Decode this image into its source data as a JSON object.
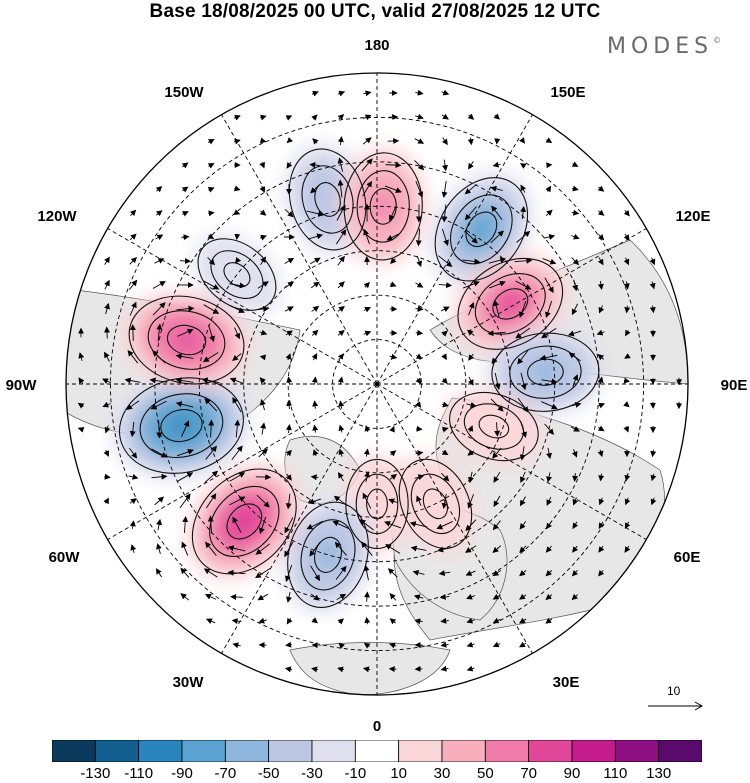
{
  "title": "Base 18/08/2025 00 UTC, valid 27/08/2025 12 UTC",
  "brand": "MODES",
  "brand_mark": "©",
  "longitude_labels": {
    "lon180": "180",
    "lon150E": "150E",
    "lon120E": "120E",
    "lon90E": "90E",
    "lon60E": "60E",
    "lon30E": "30E",
    "lon0": "0",
    "lon30W": "30W",
    "lon60W": "60W",
    "lon90W": "90W",
    "lon120W": "120W",
    "lon150W": "150W"
  },
  "reference_vector": {
    "label": "10"
  },
  "colorbar": {
    "ticks": [
      "-130",
      "-110",
      "-90",
      "-70",
      "-50",
      "-30",
      "-10",
      "10",
      "30",
      "50",
      "70",
      "90",
      "110",
      "130"
    ],
    "colors": [
      "#0b3a5c",
      "#125f8f",
      "#2a84bd",
      "#5aa2cf",
      "#8eb6dc",
      "#bcc7e4",
      "#e0e0ef",
      "#ffffff",
      "#fad7d9",
      "#f7aebd",
      "#f07aa8",
      "#e2479a",
      "#c41c8a",
      "#8e0f82",
      "#5a0a6c"
    ]
  },
  "anomaly_centers": [
    {
      "lon": -165,
      "colat_deg": 43,
      "value": -60
    },
    {
      "lon": 178,
      "colat_deg": 40,
      "value": 70
    },
    {
      "lon": 146,
      "colat_deg": 42,
      "value": -80
    },
    {
      "lon": 121,
      "colat_deg": 35,
      "value": 80
    },
    {
      "lon": 94,
      "colat_deg": 38,
      "value": -70
    },
    {
      "lon": 70,
      "colat_deg": 28,
      "value": 35
    },
    {
      "lon": 26,
      "colat_deg": 30,
      "value": 40
    },
    {
      "lon": 0,
      "colat_deg": 27,
      "value": 30
    },
    {
      "lon": -16,
      "colat_deg": 40,
      "value": -70
    },
    {
      "lon": -44,
      "colat_deg": 43,
      "value": 95
    },
    {
      "lon": -78,
      "colat_deg": 45,
      "value": -110
    },
    {
      "lon": -103,
      "colat_deg": 44,
      "value": 90
    },
    {
      "lon": -128,
      "colat_deg": 40,
      "value": -25
    }
  ]
}
